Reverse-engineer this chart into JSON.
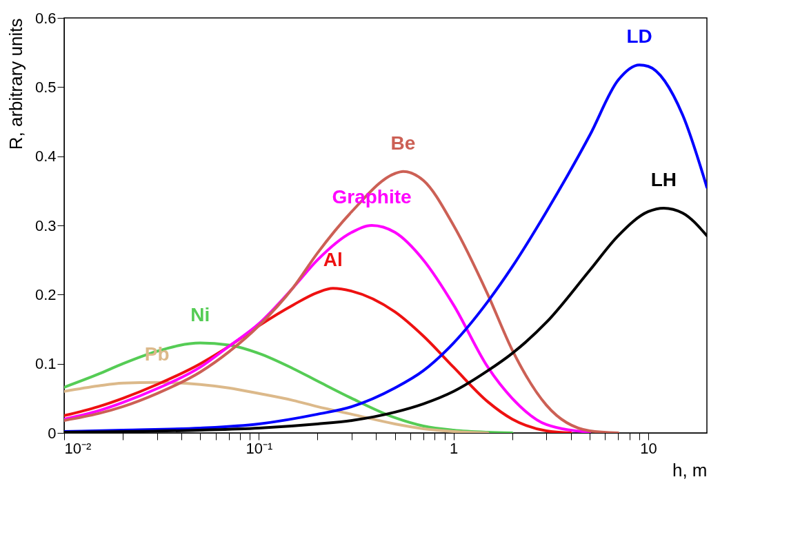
{
  "chart_data": {
    "type": "line",
    "xlabel": "h, m",
    "ylabel": "R, arbitrary units",
    "log": "x",
    "grid": false,
    "legend": false,
    "marker": "none",
    "line_style": "solid",
    "xlim": [
      0.01,
      20
    ],
    "ylim": [
      0,
      0.6
    ],
    "xticks": [
      {
        "value": 0.01,
        "label": "10⁻²"
      },
      {
        "value": 0.02,
        "label": null
      },
      {
        "value": 0.03,
        "label": null
      },
      {
        "value": 0.04,
        "label": null
      },
      {
        "value": 0.05,
        "label": null
      },
      {
        "value": 0.06,
        "label": null
      },
      {
        "value": 0.07,
        "label": null
      },
      {
        "value": 0.08,
        "label": null
      },
      {
        "value": 0.09,
        "label": null
      },
      {
        "value": 0.1,
        "label": "10⁻¹"
      },
      {
        "value": 0.2,
        "label": null
      },
      {
        "value": 0.3,
        "label": null
      },
      {
        "value": 0.4,
        "label": null
      },
      {
        "value": 0.5,
        "label": null
      },
      {
        "value": 0.6,
        "label": null
      },
      {
        "value": 0.7,
        "label": null
      },
      {
        "value": 0.8,
        "label": null
      },
      {
        "value": 0.9,
        "label": null
      },
      1,
      {
        "value": 2,
        "label": null
      },
      {
        "value": 3,
        "label": null
      },
      {
        "value": 4,
        "label": null
      },
      {
        "value": 5,
        "label": null
      },
      {
        "value": 6,
        "label": null
      },
      {
        "value": 7,
        "label": null
      },
      {
        "value": 8,
        "label": null
      },
      {
        "value": 9,
        "label": null
      },
      10
    ],
    "yticks": [
      0,
      0.1,
      0.2,
      0.3,
      0.4,
      0.5,
      0.6
    ],
    "series": [
      {
        "name": "Ni",
        "color": "#55cc55",
        "x": [
          0.01,
          0.015,
          0.02,
          0.03,
          0.05,
          0.07,
          0.1,
          0.15,
          0.2,
          0.3,
          0.5,
          0.7,
          1,
          1.5,
          2
        ],
        "values": [
          0.066,
          0.085,
          0.1,
          0.118,
          0.13,
          0.127,
          0.115,
          0.093,
          0.075,
          0.05,
          0.022,
          0.01,
          0.004,
          0.001,
          0
        ]
      },
      {
        "name": "Pb",
        "color": "#dcb98a",
        "x": [
          0.01,
          0.015,
          0.02,
          0.03,
          0.05,
          0.07,
          0.1,
          0.15,
          0.2,
          0.3,
          0.5,
          0.7,
          1,
          1.5
        ],
        "values": [
          0.06,
          0.068,
          0.072,
          0.073,
          0.07,
          0.065,
          0.057,
          0.047,
          0.038,
          0.027,
          0.013,
          0.006,
          0.002,
          0
        ]
      },
      {
        "name": "Al",
        "color": "#ee1111",
        "x": [
          0.01,
          0.015,
          0.02,
          0.03,
          0.05,
          0.07,
          0.1,
          0.15,
          0.2,
          0.24,
          0.3,
          0.5,
          0.7,
          1,
          1.5,
          2,
          3,
          4
        ],
        "values": [
          0.025,
          0.038,
          0.05,
          0.07,
          0.1,
          0.125,
          0.155,
          0.185,
          0.203,
          0.209,
          0.205,
          0.175,
          0.14,
          0.095,
          0.045,
          0.02,
          0.003,
          0
        ]
      },
      {
        "name": "Graphite",
        "color": "#ff00ff",
        "x": [
          0.01,
          0.015,
          0.02,
          0.03,
          0.05,
          0.07,
          0.1,
          0.15,
          0.2,
          0.3,
          0.38,
          0.5,
          0.7,
          1,
          1.5,
          2,
          3,
          5
        ],
        "values": [
          0.02,
          0.032,
          0.044,
          0.064,
          0.095,
          0.125,
          0.158,
          0.21,
          0.25,
          0.29,
          0.3,
          0.29,
          0.25,
          0.185,
          0.095,
          0.05,
          0.012,
          0.001
        ]
      },
      {
        "name": "Be",
        "color": "#cc6055",
        "x": [
          0.01,
          0.015,
          0.02,
          0.03,
          0.05,
          0.07,
          0.1,
          0.15,
          0.2,
          0.3,
          0.5,
          0.55,
          0.7,
          1,
          1.5,
          2,
          3,
          5,
          7
        ],
        "values": [
          0.018,
          0.028,
          0.038,
          0.057,
          0.088,
          0.117,
          0.155,
          0.21,
          0.26,
          0.32,
          0.375,
          0.378,
          0.365,
          0.3,
          0.2,
          0.12,
          0.04,
          0.003,
          0
        ]
      },
      {
        "name": "LD",
        "color": "#0000ff",
        "x": [
          0.01,
          0.02,
          0.05,
          0.1,
          0.2,
          0.3,
          0.5,
          0.7,
          1,
          1.5,
          2,
          3,
          5,
          7,
          9,
          10,
          15,
          20
        ],
        "values": [
          0.002,
          0.004,
          0.007,
          0.013,
          0.027,
          0.038,
          0.065,
          0.09,
          0.13,
          0.19,
          0.24,
          0.32,
          0.43,
          0.51,
          0.532,
          0.53,
          0.46,
          0.355
        ]
      },
      {
        "name": "LH",
        "color": "#000000",
        "x": [
          0.01,
          0.05,
          0.1,
          0.2,
          0.3,
          0.5,
          0.7,
          1,
          1.5,
          2,
          3,
          5,
          7,
          10,
          12,
          15,
          20
        ],
        "values": [
          0.001,
          0.004,
          0.007,
          0.013,
          0.018,
          0.03,
          0.042,
          0.06,
          0.09,
          0.115,
          0.16,
          0.235,
          0.285,
          0.32,
          0.325,
          0.318,
          0.285
        ]
      }
    ]
  }
}
